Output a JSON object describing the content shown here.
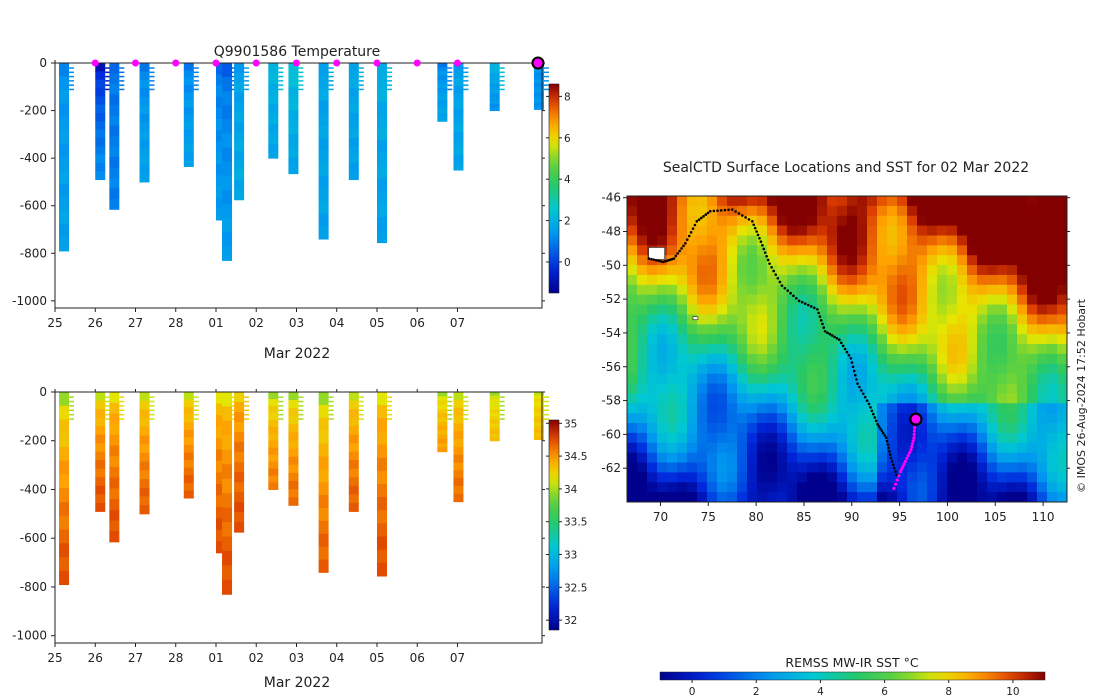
{
  "chart_data": [
    {
      "type": "heatmap",
      "title": "Q9901586  Temperature",
      "xlabel": "Mar 2022",
      "x_tick_labels": [
        "25",
        "26",
        "27",
        "28",
        "01",
        "02",
        "03",
        "04",
        "05",
        "06",
        "07"
      ],
      "y_tick_labels": [
        "0",
        "-200",
        "-400",
        "-600",
        "-800",
        "-1000"
      ],
      "ylim": [
        -1030,
        0
      ],
      "xlim_days": [
        0,
        12.1
      ],
      "colorbar": {
        "ticks": [
          "8",
          "6",
          "4",
          "2",
          "0"
        ],
        "range": [
          -1.5,
          8.6
        ]
      },
      "profile_markers_days": [
        1.0,
        2.0,
        3.0,
        4.0,
        5.0,
        6.0,
        7.0,
        8.0,
        9.0,
        10.0
      ],
      "current_marker_day": 12.0,
      "profiles": [
        {
          "day": 0.1,
          "depth": 790,
          "surface": 1.2,
          "deep": 1.6
        },
        {
          "day": 1.0,
          "depth": 490,
          "surface": -0.8,
          "deep": 1.2
        },
        {
          "day": 1.35,
          "depth": 615,
          "surface": 0.8,
          "deep": 1.0
        },
        {
          "day": 2.1,
          "depth": 500,
          "surface": 1.0,
          "deep": 1.6
        },
        {
          "day": 3.2,
          "depth": 435,
          "surface": 1.0,
          "deep": 1.6
        },
        {
          "day": 4.0,
          "depth": 660,
          "surface": 0.8,
          "deep": 1.5
        },
        {
          "day": 4.15,
          "depth": 830,
          "surface": 0.6,
          "deep": 1.5
        },
        {
          "day": 4.45,
          "depth": 575,
          "surface": 1.5,
          "deep": 1.8
        },
        {
          "day": 5.3,
          "depth": 400,
          "surface": 2.2,
          "deep": 1.7
        },
        {
          "day": 5.8,
          "depth": 465,
          "surface": 2.5,
          "deep": 1.7
        },
        {
          "day": 6.55,
          "depth": 740,
          "surface": 1.7,
          "deep": 1.6
        },
        {
          "day": 7.3,
          "depth": 490,
          "surface": 1.8,
          "deep": 1.6
        },
        {
          "day": 8.0,
          "depth": 755,
          "surface": 2.0,
          "deep": 1.6
        },
        {
          "day": 9.5,
          "depth": 245,
          "surface": 1.0,
          "deep": 1.7
        },
        {
          "day": 9.9,
          "depth": 450,
          "surface": 1.5,
          "deep": 1.7
        },
        {
          "day": 10.8,
          "depth": 200,
          "surface": 2.2,
          "deep": 1.3
        },
        {
          "day": 11.9,
          "depth": 195,
          "surface": 1.3,
          "deep": 1.3
        }
      ]
    },
    {
      "type": "heatmap",
      "title": "",
      "xlabel": "Mar 2022",
      "x_tick_labels": [
        "25",
        "26",
        "27",
        "28",
        "01",
        "02",
        "03",
        "04",
        "05",
        "06",
        "07"
      ],
      "y_tick_labels": [
        "0",
        "-200",
        "-400",
        "-600",
        "-800",
        "-1000"
      ],
      "ylim": [
        -1030,
        0
      ],
      "xlim_days": [
        0,
        12.1
      ],
      "colorbar": {
        "ticks": [
          "35",
          "34.5",
          "34",
          "33.5",
          "33",
          "32.5",
          "32"
        ],
        "range": [
          31.85,
          35.05
        ]
      },
      "profiles": [
        {
          "day": 0.1,
          "depth": 790,
          "surface": 34.0,
          "deep": 34.75
        },
        {
          "day": 1.0,
          "depth": 490,
          "surface": 34.1,
          "deep": 34.75
        },
        {
          "day": 1.35,
          "depth": 615,
          "surface": 34.2,
          "deep": 34.75
        },
        {
          "day": 2.1,
          "depth": 500,
          "surface": 34.1,
          "deep": 34.7
        },
        {
          "day": 3.2,
          "depth": 435,
          "surface": 34.1,
          "deep": 34.7
        },
        {
          "day": 4.0,
          "depth": 660,
          "surface": 34.2,
          "deep": 34.75
        },
        {
          "day": 4.15,
          "depth": 830,
          "surface": 34.2,
          "deep": 34.75
        },
        {
          "day": 4.45,
          "depth": 575,
          "surface": 34.3,
          "deep": 34.75
        },
        {
          "day": 5.3,
          "depth": 400,
          "surface": 34.0,
          "deep": 34.6
        },
        {
          "day": 5.8,
          "depth": 465,
          "surface": 34.0,
          "deep": 34.65
        },
        {
          "day": 6.55,
          "depth": 740,
          "surface": 34.0,
          "deep": 34.7
        },
        {
          "day": 7.3,
          "depth": 490,
          "surface": 34.1,
          "deep": 34.7
        },
        {
          "day": 8.0,
          "depth": 755,
          "surface": 34.2,
          "deep": 34.75
        },
        {
          "day": 9.5,
          "depth": 245,
          "surface": 34.0,
          "deep": 34.5
        },
        {
          "day": 9.9,
          "depth": 450,
          "surface": 34.1,
          "deep": 34.65
        },
        {
          "day": 10.8,
          "depth": 200,
          "surface": 34.0,
          "deep": 34.35
        },
        {
          "day": 11.9,
          "depth": 195,
          "surface": 34.1,
          "deep": 34.35
        }
      ]
    },
    {
      "type": "heatmap",
      "title": "SealCTD Surface Locations and SST for 02 Mar 2022",
      "x_tick_labels": [
        "70",
        "75",
        "80",
        "85",
        "90",
        "95",
        "100",
        "105",
        "110"
      ],
      "y_tick_labels": [
        "-46",
        "-48",
        "-50",
        "-52",
        "-54",
        "-56",
        "-58",
        "-60",
        "-62"
      ],
      "xlim": [
        66.5,
        112.5
      ],
      "ylim": [
        -64.0,
        -45.9
      ],
      "colorbar": {
        "label": "REMSS MW-IR SST °C",
        "ticks": [
          "0",
          "2",
          "4",
          "6",
          "8",
          "10"
        ],
        "range": [
          -1.0,
          11.0
        ]
      },
      "track": [
        {
          "lon": 68.8,
          "lat": -49.6
        },
        {
          "lon": 70.3,
          "lat": -49.8
        },
        {
          "lon": 71.4,
          "lat": -49.6
        },
        {
          "lon": 72.6,
          "lat": -48.7
        },
        {
          "lon": 73.8,
          "lat": -47.4
        },
        {
          "lon": 75.2,
          "lat": -46.8
        },
        {
          "lon": 77.5,
          "lat": -46.7
        },
        {
          "lon": 79.6,
          "lat": -47.4
        },
        {
          "lon": 80.5,
          "lat": -48.6
        },
        {
          "lon": 81.4,
          "lat": -49.9
        },
        {
          "lon": 82.7,
          "lat": -51.2
        },
        {
          "lon": 84.5,
          "lat": -52.1
        },
        {
          "lon": 86.4,
          "lat": -52.6
        },
        {
          "lon": 87.2,
          "lat": -53.9
        },
        {
          "lon": 88.7,
          "lat": -54.4
        },
        {
          "lon": 89.9,
          "lat": -55.5
        },
        {
          "lon": 90.6,
          "lat": -57.0
        },
        {
          "lon": 91.8,
          "lat": -58.2
        },
        {
          "lon": 92.7,
          "lat": -59.4
        },
        {
          "lon": 93.6,
          "lat": -60.2
        },
        {
          "lon": 94.1,
          "lat": -61.4
        },
        {
          "lon": 94.8,
          "lat": -62.6
        }
      ],
      "recent_track": [
        {
          "lon": 94.4,
          "lat": -63.2
        },
        {
          "lon": 95.1,
          "lat": -62.2
        },
        {
          "lon": 95.6,
          "lat": -61.6
        },
        {
          "lon": 96.2,
          "lat": -60.9
        },
        {
          "lon": 96.5,
          "lat": -60.2
        },
        {
          "lon": 96.6,
          "lat": -59.4
        }
      ],
      "current_position": {
        "lon": 96.7,
        "lat": -59.1
      },
      "islands": [
        {
          "lon": 69.6,
          "lat": -49.3
        },
        {
          "lon": 73.6,
          "lat": -53.1
        }
      ]
    }
  ],
  "credit": "© IMOS 26-Aug-2024 17:52 Hobart",
  "colors": {
    "profile_marker": "#ff00ff",
    "track": "#000000",
    "recent_track": "#ff00ff",
    "axis": "#222222"
  }
}
